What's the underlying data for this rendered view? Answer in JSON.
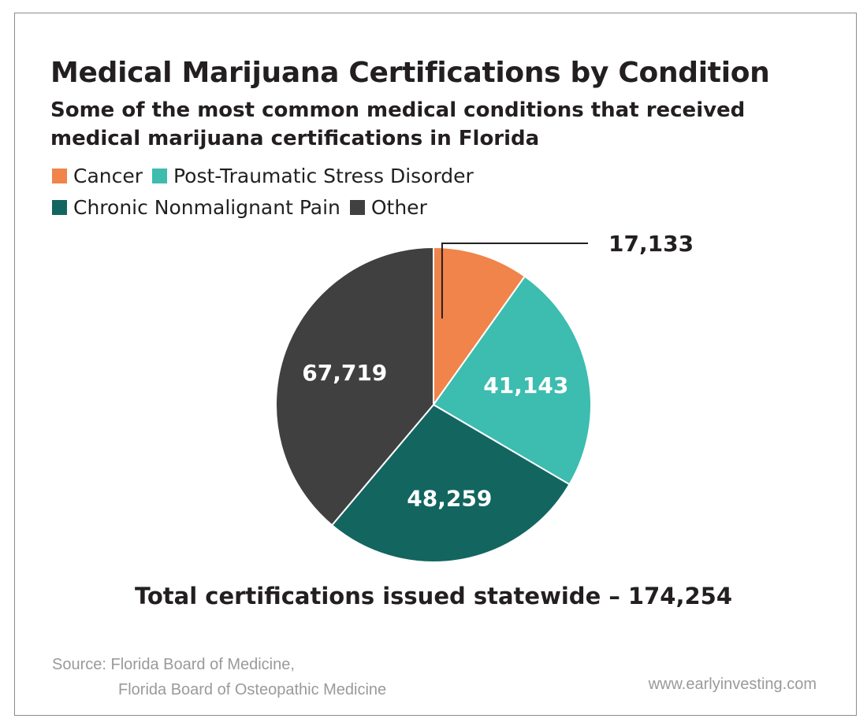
{
  "chart_data": {
    "type": "pie",
    "title": "Medical Marijuana Certifications by Condition",
    "subtitle": "Some of the most common medical conditions that received medical marijuana certifications in Florida",
    "series": [
      {
        "name": "Cancer",
        "value": 17133,
        "label": "17,133",
        "color": "#f0844a"
      },
      {
        "name": "Post-Traumatic Stress Disorder",
        "value": 41143,
        "label": "41,143",
        "color": "#3dbcb0"
      },
      {
        "name": "Chronic Nonmalignant Pain",
        "value": 48259,
        "label": "48,259",
        "color": "#136560"
      },
      {
        "name": "Other",
        "value": 67719,
        "label": "67,719",
        "color": "#404040"
      }
    ],
    "legend_placement": "top-left",
    "total_text": "Total certifications issued statewide – 174,254"
  },
  "footer": {
    "source_line1": "Source: Florida Board of Medicine,",
    "source_line2": "Florida Board of Osteopathic Medicine",
    "website": "www.earlyinvesting.com"
  }
}
